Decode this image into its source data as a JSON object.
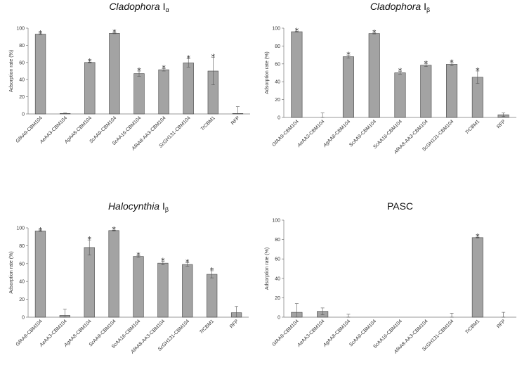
{
  "chart_data": [
    {
      "type": "bar",
      "title": "Cladophora I",
      "title_italic": "Cladophora",
      "title_sub": "α",
      "ylabel": "Adsorption rate (%)",
      "ylim": [
        0,
        100
      ],
      "yticks": [
        0,
        20,
        40,
        60,
        80,
        100
      ],
      "categories": [
        "GfAA9-CBM104",
        "AeAA3-CBM104",
        "AgAA8-CBM104",
        "ScAA9-CBM104",
        "ScAA16-CBM104",
        "AfAA8-AA3-CBM104",
        "ScGH131-CBM104",
        "TrCBM1",
        "RFP"
      ],
      "values": [
        93,
        0.5,
        60,
        94,
        47,
        51.5,
        59.5,
        50,
        0.5
      ],
      "errors": [
        0.5,
        0.5,
        0.5,
        0.5,
        3,
        1.5,
        5,
        16,
        8
      ],
      "significant": [
        true,
        false,
        true,
        true,
        true,
        true,
        true,
        true,
        false
      ]
    },
    {
      "type": "bar",
      "title": "Cladophora I",
      "title_italic": "Cladophora",
      "title_sub": "β",
      "ylabel": "Adsorption rate (%)",
      "ylim": [
        0,
        100
      ],
      "yticks": [
        0,
        20,
        40,
        60,
        80,
        100
      ],
      "categories": [
        "GfAA9-CBM104",
        "AeAA3-CBM104",
        "AgAA8-CBM104",
        "ScAA9-CBM104",
        "ScAA16-CBM104",
        "AfAA8-AA3-CBM104",
        "ScGH131-CBM104",
        "TrCBM1",
        "RFP"
      ],
      "values": [
        96,
        0,
        68,
        94,
        50,
        58.5,
        59.5,
        45,
        3
      ],
      "errors": [
        0.5,
        5,
        1.5,
        0.5,
        1.5,
        1.5,
        1.5,
        7,
        2
      ],
      "significant": [
        true,
        false,
        true,
        true,
        true,
        true,
        true,
        true,
        false
      ]
    },
    {
      "type": "bar",
      "title": "Halocynthia I",
      "title_italic": "Halocynthia",
      "title_sub": "β",
      "ylabel": "Adsorption rate (%)",
      "ylim": [
        0,
        100
      ],
      "yticks": [
        0,
        20,
        40,
        60,
        80,
        100
      ],
      "categories": [
        "GfAA9-CBM104",
        "AeAA3-CBM104",
        "AgAA8-CBM104",
        "ScAA9-CBM104",
        "ScAA16-CBM104",
        "AfAA8-AA3-CBM104",
        "ScGH131-CBM104",
        "TrCBM1",
        "RFP"
      ],
      "values": [
        96.5,
        2,
        78,
        97,
        68,
        60.5,
        59,
        48,
        5
      ],
      "errors": [
        0.5,
        7,
        8.5,
        0.5,
        1,
        2,
        2,
        4,
        7
      ],
      "significant": [
        true,
        false,
        true,
        true,
        true,
        true,
        true,
        true,
        false
      ]
    },
    {
      "type": "bar",
      "title": "PASC",
      "title_italic": "",
      "title_sub": "",
      "ylabel": "Adsorption rate (%)",
      "ylim": [
        0,
        100
      ],
      "yticks": [
        0,
        20,
        40,
        60,
        80,
        100
      ],
      "categories": [
        "GfAA9-CBM104",
        "AeAA3-CBM104",
        "AgAA8-CBM104",
        "ScAA9-CBM104",
        "ScAA16-CBM104",
        "AfAA8-AA3-CBM104",
        "ScGH131-CBM104",
        "TrCBM1",
        "RFP"
      ],
      "values": [
        5,
        6,
        0,
        0,
        0,
        0,
        0,
        82,
        0
      ],
      "errors": [
        9,
        3.5,
        3,
        0,
        0,
        0,
        4,
        0.5,
        5
      ],
      "significant": [
        false,
        false,
        false,
        false,
        false,
        false,
        false,
        true,
        false
      ]
    }
  ]
}
